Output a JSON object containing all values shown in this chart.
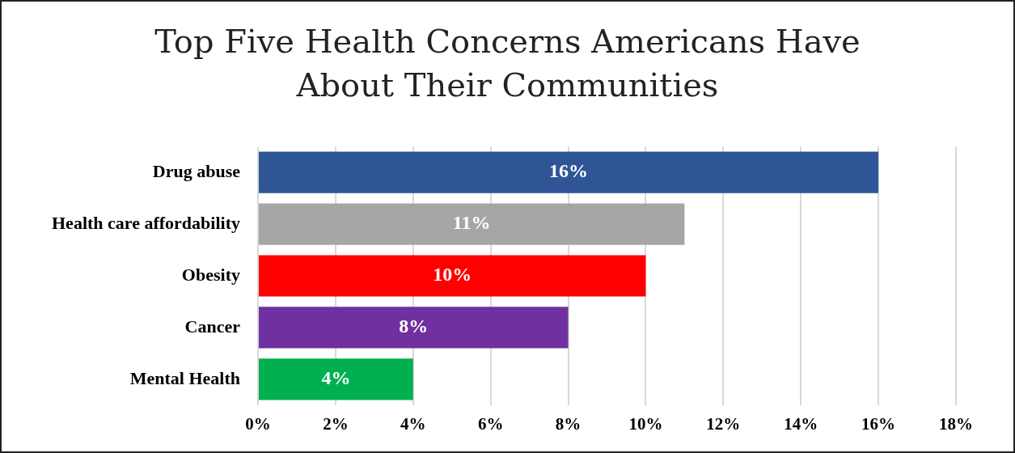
{
  "chart_data": {
    "type": "bar",
    "orientation": "horizontal",
    "title": "Top Five Health Concerns Americans Have About Their Communities",
    "categories": [
      "Drug abuse",
      "Health care affordability",
      "Obesity",
      "Cancer",
      "Mental Health"
    ],
    "values": [
      16,
      11,
      10,
      8,
      4
    ],
    "colors": [
      "#2f5597",
      "#a6a6a6",
      "#ff0000",
      "#7030a0",
      "#00b050"
    ],
    "value_labels": [
      "16%",
      "11%",
      "10%",
      "8%",
      "4%"
    ],
    "xlim": [
      0,
      18
    ],
    "xticks": [
      {
        "value": 0,
        "label": "0%"
      },
      {
        "value": 2,
        "label": "2%"
      },
      {
        "value": 4,
        "label": "4%"
      },
      {
        "value": 6,
        "label": "6%"
      },
      {
        "value": 8,
        "label": "8%"
      },
      {
        "value": 10,
        "label": "10%"
      },
      {
        "value": 12,
        "label": "12%"
      },
      {
        "value": 14,
        "label": "14%"
      },
      {
        "value": 16,
        "label": "16%"
      },
      {
        "value": 18,
        "label": "18%"
      }
    ],
    "grid": "x",
    "legend": false
  }
}
